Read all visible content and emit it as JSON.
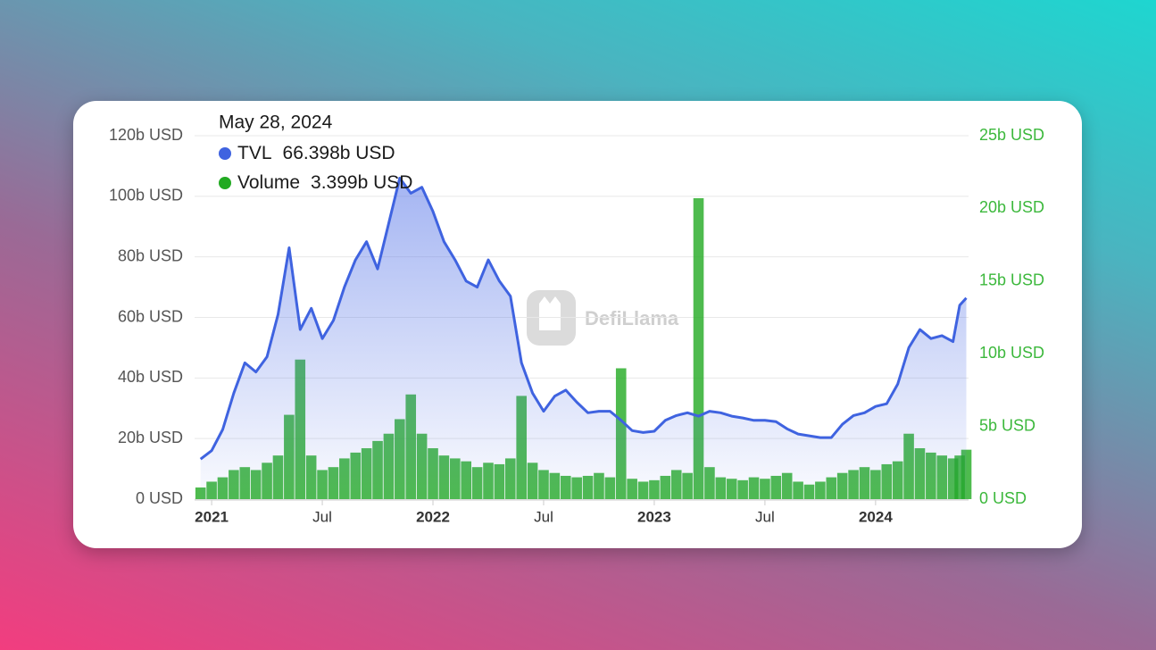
{
  "chart_data": {
    "type": "line",
    "watermark": "DefiLlama",
    "tooltip": {
      "title": "May 28, 2024",
      "value_labels": [
        "66.398b USD",
        "3.399b USD"
      ]
    },
    "x": [
      2020.95,
      2021.0,
      2021.05,
      2021.1,
      2021.15,
      2021.2,
      2021.25,
      2021.3,
      2021.35,
      2021.4,
      2021.45,
      2021.5,
      2021.55,
      2021.6,
      2021.65,
      2021.7,
      2021.75,
      2021.8,
      2021.85,
      2021.9,
      2021.95,
      2022.0,
      2022.05,
      2022.1,
      2022.15,
      2022.2,
      2022.25,
      2022.3,
      2022.35,
      2022.4,
      2022.45,
      2022.5,
      2022.55,
      2022.6,
      2022.65,
      2022.7,
      2022.75,
      2022.8,
      2022.85,
      2022.9,
      2022.95,
      2023.0,
      2023.05,
      2023.1,
      2023.15,
      2023.2,
      2023.25,
      2023.3,
      2023.35,
      2023.4,
      2023.45,
      2023.5,
      2023.55,
      2023.6,
      2023.65,
      2023.7,
      2023.75,
      2023.8,
      2023.85,
      2023.9,
      2023.95,
      2024.0,
      2024.05,
      2024.1,
      2024.15,
      2024.2,
      2024.25,
      2024.3,
      2024.35,
      2024.38,
      2024.41
    ],
    "series": [
      {
        "name": "TVL",
        "type": "line",
        "color": "#3f63e0",
        "values": [
          13.2,
          16,
          23,
          35,
          45,
          42,
          47,
          61,
          83,
          56,
          63,
          53,
          59,
          70,
          79,
          85,
          76,
          91,
          106,
          101,
          103,
          95,
          85,
          79,
          72,
          70,
          79,
          72,
          67,
          45,
          35,
          29,
          34,
          36,
          32,
          28.5,
          29,
          29,
          26,
          22.6,
          22,
          22.4,
          26,
          27.6,
          28.5,
          27.4,
          29,
          28.5,
          27.4,
          26.8,
          26,
          26,
          25.6,
          23.2,
          21.5,
          20.9,
          20.3,
          20.3,
          24.7,
          27.6,
          28.5,
          30.6,
          31.5,
          38,
          50,
          56,
          53,
          54,
          52,
          64,
          66.398
        ]
      },
      {
        "name": "Volume",
        "type": "bar",
        "axis": "y2",
        "color": "#22aa22",
        "values": [
          0.8,
          1.2,
          1.5,
          2.0,
          2.2,
          2.0,
          2.5,
          3.0,
          5.8,
          9.6,
          3.0,
          2.0,
          2.2,
          2.8,
          3.2,
          3.5,
          4.0,
          4.5,
          5.5,
          7.2,
          4.5,
          3.5,
          3.0,
          2.8,
          2.6,
          2.2,
          2.5,
          2.4,
          2.8,
          7.1,
          2.5,
          2.0,
          1.8,
          1.6,
          1.5,
          1.6,
          1.8,
          1.5,
          9.0,
          1.4,
          1.2,
          1.3,
          1.6,
          2.0,
          1.8,
          20.7,
          2.2,
          1.5,
          1.4,
          1.3,
          1.5,
          1.4,
          1.6,
          1.8,
          1.2,
          1.0,
          1.2,
          1.5,
          1.8,
          2.0,
          2.2,
          2.0,
          2.4,
          2.6,
          4.5,
          3.5,
          3.2,
          3.0,
          2.8,
          3.0,
          3.399
        ]
      }
    ],
    "xlim": [
      2020.923,
      2024.42
    ],
    "xticks": [
      {
        "value": 2021,
        "label": "2021"
      },
      {
        "value": 2021.5,
        "label": "Jul"
      },
      {
        "value": 2022,
        "label": "2022"
      },
      {
        "value": 2022.5,
        "label": "Jul"
      },
      {
        "value": 2023,
        "label": "2023"
      },
      {
        "value": 2023.5,
        "label": "Jul"
      },
      {
        "value": 2024,
        "label": "2024"
      }
    ],
    "ylim": [
      0,
      120
    ],
    "yticks": [
      {
        "value": 0,
        "label": "0 USD"
      },
      {
        "value": 20,
        "label": "20b USD"
      },
      {
        "value": 40,
        "label": "40b USD"
      },
      {
        "value": 60,
        "label": "60b USD"
      },
      {
        "value": 80,
        "label": "80b USD"
      },
      {
        "value": 100,
        "label": "100b USD"
      },
      {
        "value": 120,
        "label": "120b USD"
      }
    ],
    "y2lim": [
      0,
      25
    ],
    "y2ticks": [
      {
        "value": 0,
        "label": "0 USD"
      },
      {
        "value": 5,
        "label": "5b USD"
      },
      {
        "value": 10,
        "label": "10b USD"
      },
      {
        "value": 15,
        "label": "15b USD"
      },
      {
        "value": 20,
        "label": "20b USD"
      },
      {
        "value": 25,
        "label": "25b USD"
      }
    ],
    "grid": true
  }
}
